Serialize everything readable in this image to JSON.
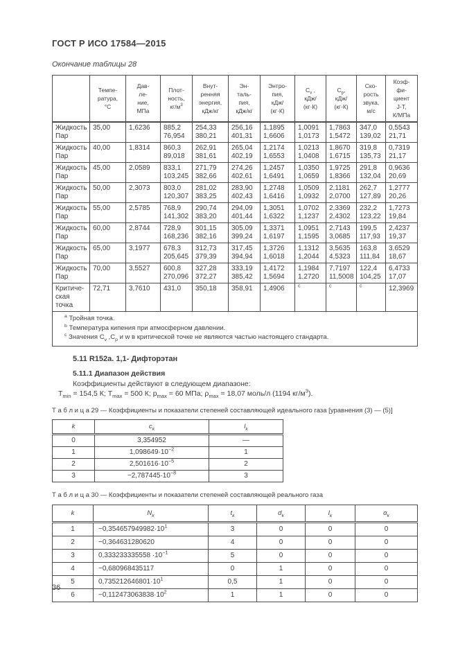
{
  "page": {
    "doc_header": "ГОСТ Р ИСО 17584—2015",
    "table_continuation": "Окончание таблицы 28",
    "page_number": "36"
  },
  "table28": {
    "col_headers": [
      "",
      "Темпе-\nратура,\n°С",
      "Дав-\nле-\nние,\nМПа",
      "Плот-\nность,\nкг/м^{3}",
      "Внут-\nренняя\nэнергия,\nкДж/кг",
      "Эн-\nталь-\nпия,\nкДж/кг",
      "Энтро-\nпия,\nкДж/\n(кг·К)",
      "C_{v} ,\nкДж/\n(кг·К)",
      "C_{p},\nкДж/\n(кг·К)",
      "Ско-\nрость\nзвука,\nм/с",
      "Коэф-\nфи-\nциент\nJ-T,\nК/МПа"
    ],
    "rows": [
      {
        "label": "Жидкость\nПар",
        "cells": [
          "35,00",
          "1,6236",
          "885,2\n76,954",
          "254,33\n380,21",
          "256,16\n401,31",
          "1,1895\n1,6606",
          "1,0091\n1,0173",
          "1,7863\n1,5472",
          "347,0\n139,02",
          "0,5543\n21,71"
        ]
      },
      {
        "label": "Жидкость\nПар",
        "cells": [
          "40,00",
          "1,8314",
          "860,3\n89,018",
          "262,91\n381,61",
          "265,04\n402,19",
          "1,2174\n1,6553",
          "1,0213\n1,0408",
          "1,8670\n1,6715",
          "319,8\n135,73",
          "0,7319\n21,17"
        ]
      },
      {
        "label": "Жидкость\nПар",
        "cells": [
          "45,00",
          "2,0589",
          "833,1\n103,245",
          "271,79\n382,66",
          "274,26\n402,61",
          "1,2457\n1,6491",
          "1,0350\n1,0659",
          "1,9725\n1,8366",
          "291,8\n132,04",
          "0,9636\n20,69"
        ]
      },
      {
        "label": "Жидкость\nПар",
        "cells": [
          "50,00",
          "2,3073",
          "803,0\n120,307",
          "281,02\n383,25",
          "283,90\n402,43",
          "1,2748\n1,6416",
          "1,0509\n1,0932",
          "2,1181\n2,0700",
          "262,7\n127,89",
          "1,2777\n20,26"
        ]
      },
      {
        "label": "Жидкость\nПар",
        "cells": [
          "55,00",
          "2,5785",
          "768,9\n141,302",
          "290,74\n383,20",
          "294,09\n401,44",
          "1,3051\n1,6322",
          "1,0702\n1,1237",
          "2,3369\n2,4302",
          "232,2\n123,22",
          "1,7273\n19,84"
        ]
      },
      {
        "label": "Жидкость\nПар",
        "cells": [
          "60,00",
          "2,8744",
          "728,9\n168,236",
          "301,15\n382,16",
          "305,09\n399,24",
          "1,3371\n1,6197",
          "1,0951\n1,1595",
          "2,7143\n3,0685",
          "199,5\n117,93",
          "2,4237\n19,37"
        ]
      },
      {
        "label": "Жидкость\nПар",
        "cells": [
          "65,00",
          "3,1977",
          "678,3\n205,645",
          "312,73\n379,39",
          "317,45\n394,94",
          "1,3726\n1,6018",
          "1,1312\n1,2044",
          "3,5635\n4,5323",
          "163,8\n111,84",
          "3,6529\n18,67"
        ]
      },
      {
        "label": "Жидкость\nПар",
        "cells": [
          "70,00",
          "3,5527",
          "600,8\n270,096",
          "327,28\n372,27",
          "333,19\n385,42",
          "1,4172\n1,5694",
          "1,1984\n1,2720",
          "7,7197\n11,5008",
          "122,4\n104,25",
          "6,4733\n17,07"
        ]
      }
    ],
    "critical_row": {
      "label": "Критиче-\nская точка",
      "cells": [
        "72,71",
        "3,7610",
        "431,0",
        "350,18",
        "358,91",
        "1,4906",
        "^{c}",
        "^{c}",
        "^{c}",
        "12,3969"
      ]
    },
    "footnotes": [
      "^{a} Тройная точка.",
      "^{b} Температура кипения при атмосферном давлении.",
      "^{c} Значения C_{v} ,C_{p} и w в критической точке не являются частью настоящего стандарта."
    ]
  },
  "section": {
    "heading": "5.11 R152a. 1,1- Дифторэтан",
    "subheading": "5.11.1 Диапазон действия",
    "intro": "Коэффициенты действуют в следующем диапазоне:",
    "range": "T_{min} = 154,5 К; T_{max} = 500 К; p_{max} = 60 МПа; ρ_{max} = 18,07 моль/л (1194 кг/м^{3})."
  },
  "table29": {
    "title": "Т а б л и ц а 29 — Коэффициенты и показатели степеней составляющей идеального газа [уравнения (3) — (5)]",
    "col_headers": [
      "k",
      "c_{k}",
      "l_{k}"
    ],
    "rows": [
      [
        "0",
        "3,354952",
        "—"
      ],
      [
        "1",
        "1,098649·10^{−2}",
        "1"
      ],
      [
        "2",
        "2,501616·10^{−5}",
        "2"
      ],
      [
        "3",
        "−2,787445·10^{−8}",
        "3"
      ]
    ]
  },
  "table30": {
    "title": "Т а б л и ц а  30 — Коэффициенты и показатели степеней составляющей реального газа",
    "col_headers": [
      "k",
      "N_{k}",
      "t_{k}",
      "d_{k}",
      "l_{k}",
      "α_{k}"
    ],
    "rows": [
      [
        "1",
        "−0,354657949982·10^{1}",
        "3",
        "0",
        "0",
        "0"
      ],
      [
        "2",
        "−0,364631280620",
        "4",
        "0",
        "0",
        "0"
      ],
      [
        "3",
        "0,333233335558 ·10^{−1}",
        "5",
        "0",
        "0",
        "0"
      ],
      [
        "4",
        "−0,680968435117",
        "0",
        "1",
        "0",
        "0"
      ],
      [
        "5",
        "0,735212646801·10^{1}",
        "0,5",
        "1",
        "0",
        "0"
      ],
      [
        "6",
        "−0,112473063838·10^{2}",
        "1",
        "1",
        "0",
        "0"
      ]
    ]
  }
}
